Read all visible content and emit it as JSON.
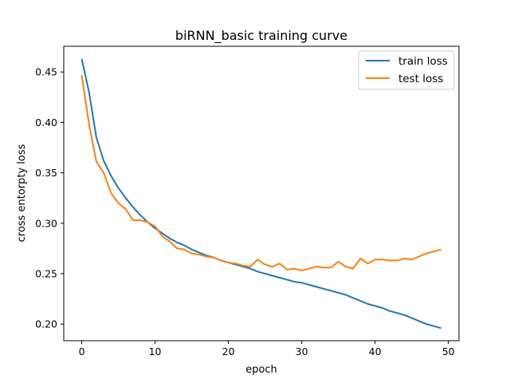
{
  "chart_data": {
    "type": "line",
    "title": "biRNN_basic training curve",
    "xlabel": "epoch",
    "ylabel": "cross entorpty loss",
    "xlim": [
      -2.45,
      51.45
    ],
    "ylim": [
      0.1835,
      0.4755
    ],
    "xticks": [
      0,
      10,
      20,
      30,
      40,
      50
    ],
    "yticks": [
      0.2,
      0.25,
      0.3,
      0.35,
      0.4,
      0.45
    ],
    "ytick_labels": [
      "0.20",
      "0.25",
      "0.30",
      "0.35",
      "0.40",
      "0.45"
    ],
    "grid": false,
    "legend_position": "top-right",
    "x": [
      0,
      1,
      2,
      3,
      4,
      5,
      6,
      7,
      8,
      9,
      10,
      11,
      12,
      13,
      14,
      15,
      16,
      17,
      18,
      19,
      20,
      21,
      22,
      23,
      24,
      25,
      26,
      27,
      28,
      29,
      30,
      31,
      32,
      33,
      34,
      35,
      36,
      37,
      38,
      39,
      40,
      41,
      42,
      43,
      44,
      45,
      46,
      47,
      48,
      49
    ],
    "series": [
      {
        "name": "train loss",
        "color": "#1f77b4",
        "values": [
          0.463,
          0.43,
          0.385,
          0.362,
          0.347,
          0.335,
          0.325,
          0.316,
          0.308,
          0.301,
          0.295,
          0.29,
          0.285,
          0.281,
          0.278,
          0.274,
          0.271,
          0.268,
          0.266,
          0.263,
          0.261,
          0.259,
          0.257,
          0.255,
          0.252,
          0.25,
          0.248,
          0.246,
          0.244,
          0.242,
          0.241,
          0.239,
          0.237,
          0.235,
          0.233,
          0.231,
          0.229,
          0.226,
          0.223,
          0.22,
          0.218,
          0.216,
          0.213,
          0.211,
          0.209,
          0.206,
          0.203,
          0.2,
          0.198,
          0.196
        ]
      },
      {
        "name": "test loss",
        "color": "#ff7f0e",
        "values": [
          0.447,
          0.398,
          0.361,
          0.35,
          0.33,
          0.32,
          0.314,
          0.303,
          0.303,
          0.301,
          0.297,
          0.287,
          0.282,
          0.275,
          0.274,
          0.27,
          0.269,
          0.267,
          0.266,
          0.263,
          0.261,
          0.26,
          0.258,
          0.257,
          0.264,
          0.259,
          0.257,
          0.26,
          0.254,
          0.255,
          0.253,
          0.255,
          0.257,
          0.256,
          0.256,
          0.262,
          0.257,
          0.255,
          0.265,
          0.26,
          0.264,
          0.264,
          0.263,
          0.263,
          0.265,
          0.264,
          0.267,
          0.27,
          0.272,
          0.274
        ]
      }
    ]
  }
}
